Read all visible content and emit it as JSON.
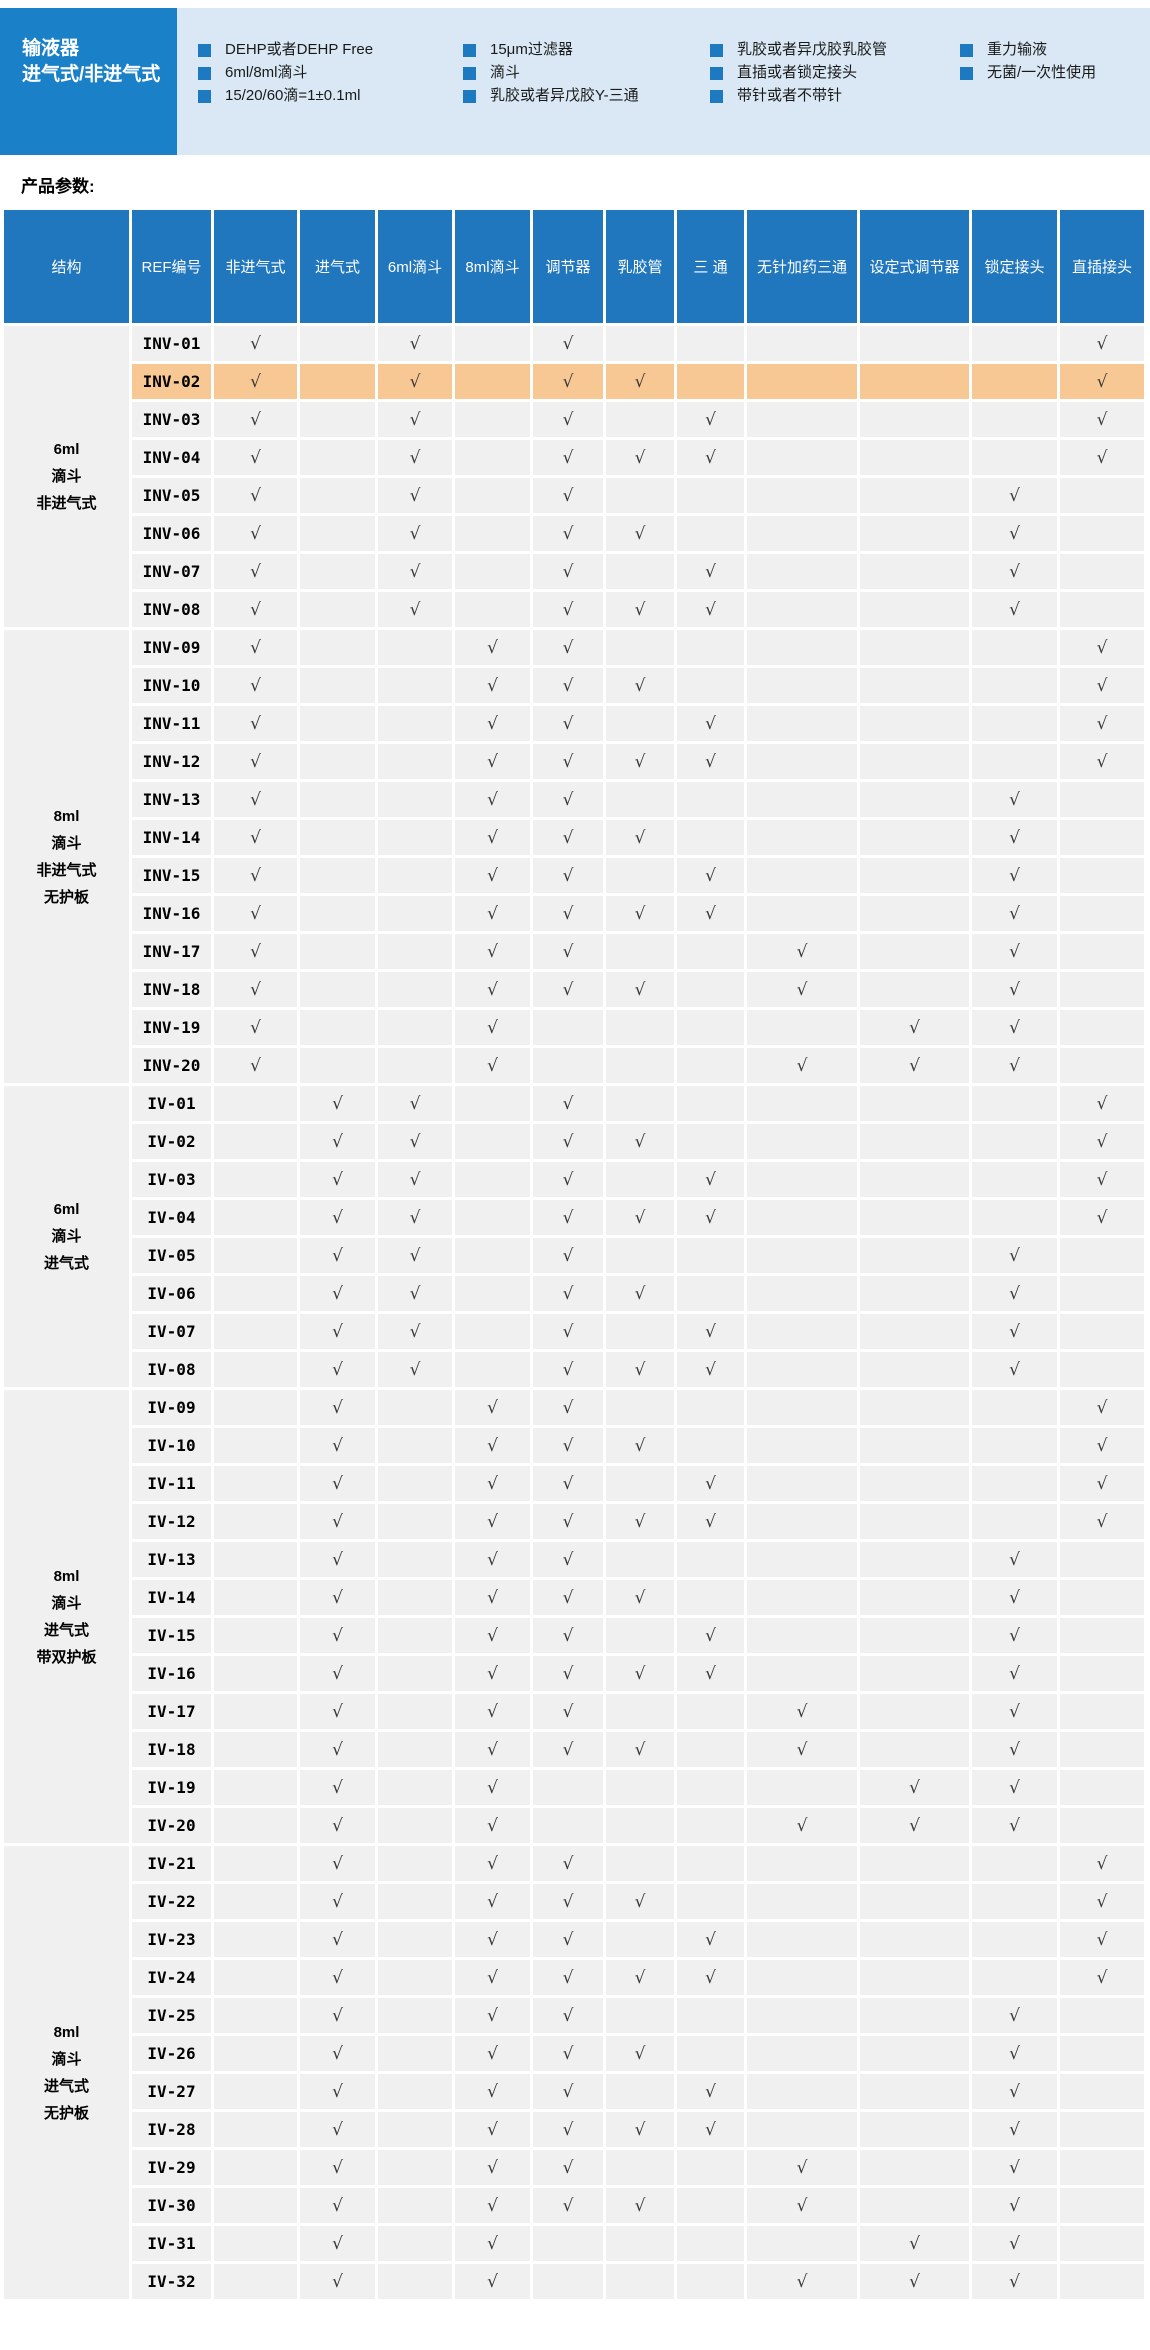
{
  "banner": {
    "title_lines": [
      "输液器",
      "进气式/非进气式"
    ],
    "feature_columns": [
      [
        "DEHP或者DEHP Free",
        "6ml/8ml滴斗",
        "15/20/60滴=1±0.1ml"
      ],
      [
        "15μm过滤器",
        "滴斗",
        "乳胶或者异戊胶Y-三通"
      ],
      [
        "乳胶或者异戊胶乳胶管",
        "直插或者锁定接头",
        "带针或者不带针"
      ],
      [
        "重力输液",
        "无菌/一次性使用"
      ]
    ]
  },
  "section_label": "产品参数:",
  "colors": {
    "banner_blue": "#1a80c8",
    "panel_light_blue": "#d9e8f4",
    "bullet_blue": "#1d7ac1",
    "header_blue": "#2077bd",
    "row_gray": "#f0f0f0",
    "highlight_orange": "#f8c894",
    "check_gray": "#3a3a3a"
  },
  "table": {
    "check_mark": "√",
    "highlight_ref": "INV-02",
    "columns": [
      "结构",
      "REF编号",
      "非进气式",
      "进气式",
      "6ml滴斗",
      "8ml滴斗",
      "调节器",
      "乳胶管",
      "三 通",
      "无针加药三通",
      "设定式调节器",
      "锁定接头",
      "直插接头"
    ],
    "feature_column_keys": [
      "非进气式",
      "进气式",
      "6ml滴斗",
      "8ml滴斗",
      "调节器",
      "乳胶管",
      "三通",
      "无针加药三通",
      "设定式调节器",
      "锁定接头",
      "直插接头"
    ],
    "groups": [
      {
        "structure_lines": [
          "6ml",
          "滴斗",
          "非进气式"
        ],
        "rows": [
          {
            "ref": "INV-01",
            "checks": [
              1,
              0,
              1,
              0,
              1,
              0,
              0,
              0,
              0,
              0,
              1
            ]
          },
          {
            "ref": "INV-02",
            "checks": [
              1,
              0,
              1,
              0,
              1,
              1,
              0,
              0,
              0,
              0,
              1
            ]
          },
          {
            "ref": "INV-03",
            "checks": [
              1,
              0,
              1,
              0,
              1,
              0,
              1,
              0,
              0,
              0,
              1
            ]
          },
          {
            "ref": "INV-04",
            "checks": [
              1,
              0,
              1,
              0,
              1,
              1,
              1,
              0,
              0,
              0,
              1
            ]
          },
          {
            "ref": "INV-05",
            "checks": [
              1,
              0,
              1,
              0,
              1,
              0,
              0,
              0,
              0,
              1,
              0
            ]
          },
          {
            "ref": "INV-06",
            "checks": [
              1,
              0,
              1,
              0,
              1,
              1,
              0,
              0,
              0,
              1,
              0
            ]
          },
          {
            "ref": "INV-07",
            "checks": [
              1,
              0,
              1,
              0,
              1,
              0,
              1,
              0,
              0,
              1,
              0
            ]
          },
          {
            "ref": "INV-08",
            "checks": [
              1,
              0,
              1,
              0,
              1,
              1,
              1,
              0,
              0,
              1,
              0
            ]
          }
        ]
      },
      {
        "structure_lines": [
          "8ml",
          "滴斗",
          "非进气式",
          "无护板"
        ],
        "rows": [
          {
            "ref": "INV-09",
            "checks": [
              1,
              0,
              0,
              1,
              1,
              0,
              0,
              0,
              0,
              0,
              1
            ]
          },
          {
            "ref": "INV-10",
            "checks": [
              1,
              0,
              0,
              1,
              1,
              1,
              0,
              0,
              0,
              0,
              1
            ]
          },
          {
            "ref": "INV-11",
            "checks": [
              1,
              0,
              0,
              1,
              1,
              0,
              1,
              0,
              0,
              0,
              1
            ]
          },
          {
            "ref": "INV-12",
            "checks": [
              1,
              0,
              0,
              1,
              1,
              1,
              1,
              0,
              0,
              0,
              1
            ]
          },
          {
            "ref": "INV-13",
            "checks": [
              1,
              0,
              0,
              1,
              1,
              0,
              0,
              0,
              0,
              1,
              0
            ]
          },
          {
            "ref": "INV-14",
            "checks": [
              1,
              0,
              0,
              1,
              1,
              1,
              0,
              0,
              0,
              1,
              0
            ]
          },
          {
            "ref": "INV-15",
            "checks": [
              1,
              0,
              0,
              1,
              1,
              0,
              1,
              0,
              0,
              1,
              0
            ]
          },
          {
            "ref": "INV-16",
            "checks": [
              1,
              0,
              0,
              1,
              1,
              1,
              1,
              0,
              0,
              1,
              0
            ]
          },
          {
            "ref": "INV-17",
            "checks": [
              1,
              0,
              0,
              1,
              1,
              0,
              0,
              1,
              0,
              1,
              0
            ]
          },
          {
            "ref": "INV-18",
            "checks": [
              1,
              0,
              0,
              1,
              1,
              1,
              0,
              1,
              0,
              1,
              0
            ]
          },
          {
            "ref": "INV-19",
            "checks": [
              1,
              0,
              0,
              1,
              0,
              0,
              0,
              0,
              1,
              1,
              0
            ]
          },
          {
            "ref": "INV-20",
            "checks": [
              1,
              0,
              0,
              1,
              0,
              0,
              0,
              1,
              1,
              1,
              0
            ]
          }
        ]
      },
      {
        "structure_lines": [
          "6ml",
          "滴斗",
          "进气式"
        ],
        "rows": [
          {
            "ref": "IV-01",
            "checks": [
              0,
              1,
              1,
              0,
              1,
              0,
              0,
              0,
              0,
              0,
              1
            ]
          },
          {
            "ref": "IV-02",
            "checks": [
              0,
              1,
              1,
              0,
              1,
              1,
              0,
              0,
              0,
              0,
              1
            ]
          },
          {
            "ref": "IV-03",
            "checks": [
              0,
              1,
              1,
              0,
              1,
              0,
              1,
              0,
              0,
              0,
              1
            ]
          },
          {
            "ref": "IV-04",
            "checks": [
              0,
              1,
              1,
              0,
              1,
              1,
              1,
              0,
              0,
              0,
              1
            ]
          },
          {
            "ref": "IV-05",
            "checks": [
              0,
              1,
              1,
              0,
              1,
              0,
              0,
              0,
              0,
              1,
              0
            ]
          },
          {
            "ref": "IV-06",
            "checks": [
              0,
              1,
              1,
              0,
              1,
              1,
              0,
              0,
              0,
              1,
              0
            ]
          },
          {
            "ref": "IV-07",
            "checks": [
              0,
              1,
              1,
              0,
              1,
              0,
              1,
              0,
              0,
              1,
              0
            ]
          },
          {
            "ref": "IV-08",
            "checks": [
              0,
              1,
              1,
              0,
              1,
              1,
              1,
              0,
              0,
              1,
              0
            ]
          }
        ]
      },
      {
        "structure_lines": [
          "8ml",
          "滴斗",
          "进气式",
          "带双护板"
        ],
        "rows": [
          {
            "ref": "IV-09",
            "checks": [
              0,
              1,
              0,
              1,
              1,
              0,
              0,
              0,
              0,
              0,
              1
            ]
          },
          {
            "ref": "IV-10",
            "checks": [
              0,
              1,
              0,
              1,
              1,
              1,
              0,
              0,
              0,
              0,
              1
            ]
          },
          {
            "ref": "IV-11",
            "checks": [
              0,
              1,
              0,
              1,
              1,
              0,
              1,
              0,
              0,
              0,
              1
            ]
          },
          {
            "ref": "IV-12",
            "checks": [
              0,
              1,
              0,
              1,
              1,
              1,
              1,
              0,
              0,
              0,
              1
            ]
          },
          {
            "ref": "IV-13",
            "checks": [
              0,
              1,
              0,
              1,
              1,
              0,
              0,
              0,
              0,
              1,
              0
            ]
          },
          {
            "ref": "IV-14",
            "checks": [
              0,
              1,
              0,
              1,
              1,
              1,
              0,
              0,
              0,
              1,
              0
            ]
          },
          {
            "ref": "IV-15",
            "checks": [
              0,
              1,
              0,
              1,
              1,
              0,
              1,
              0,
              0,
              1,
              0
            ]
          },
          {
            "ref": "IV-16",
            "checks": [
              0,
              1,
              0,
              1,
              1,
              1,
              1,
              0,
              0,
              1,
              0
            ]
          },
          {
            "ref": "IV-17",
            "checks": [
              0,
              1,
              0,
              1,
              1,
              0,
              0,
              1,
              0,
              1,
              0
            ]
          },
          {
            "ref": "IV-18",
            "checks": [
              0,
              1,
              0,
              1,
              1,
              1,
              0,
              1,
              0,
              1,
              0
            ]
          },
          {
            "ref": "IV-19",
            "checks": [
              0,
              1,
              0,
              1,
              0,
              0,
              0,
              0,
              1,
              1,
              0
            ]
          },
          {
            "ref": "IV-20",
            "checks": [
              0,
              1,
              0,
              1,
              0,
              0,
              0,
              1,
              1,
              1,
              0
            ]
          }
        ]
      },
      {
        "structure_lines": [
          "8ml",
          "滴斗",
          "进气式",
          "无护板"
        ],
        "rows": [
          {
            "ref": "IV-21",
            "checks": [
              0,
              1,
              0,
              1,
              1,
              0,
              0,
              0,
              0,
              0,
              1
            ]
          },
          {
            "ref": "IV-22",
            "checks": [
              0,
              1,
              0,
              1,
              1,
              1,
              0,
              0,
              0,
              0,
              1
            ]
          },
          {
            "ref": "IV-23",
            "checks": [
              0,
              1,
              0,
              1,
              1,
              0,
              1,
              0,
              0,
              0,
              1
            ]
          },
          {
            "ref": "IV-24",
            "checks": [
              0,
              1,
              0,
              1,
              1,
              1,
              1,
              0,
              0,
              0,
              1
            ]
          },
          {
            "ref": "IV-25",
            "checks": [
              0,
              1,
              0,
              1,
              1,
              0,
              0,
              0,
              0,
              1,
              0
            ]
          },
          {
            "ref": "IV-26",
            "checks": [
              0,
              1,
              0,
              1,
              1,
              1,
              0,
              0,
              0,
              1,
              0
            ]
          },
          {
            "ref": "IV-27",
            "checks": [
              0,
              1,
              0,
              1,
              1,
              0,
              1,
              0,
              0,
              1,
              0
            ]
          },
          {
            "ref": "IV-28",
            "checks": [
              0,
              1,
              0,
              1,
              1,
              1,
              1,
              0,
              0,
              1,
              0
            ]
          },
          {
            "ref": "IV-29",
            "checks": [
              0,
              1,
              0,
              1,
              1,
              0,
              0,
              1,
              0,
              1,
              0
            ]
          },
          {
            "ref": "IV-30",
            "checks": [
              0,
              1,
              0,
              1,
              1,
              1,
              0,
              1,
              0,
              1,
              0
            ]
          },
          {
            "ref": "IV-31",
            "checks": [
              0,
              1,
              0,
              1,
              0,
              0,
              0,
              0,
              1,
              1,
              0
            ]
          },
          {
            "ref": "IV-32",
            "checks": [
              0,
              1,
              0,
              1,
              0,
              0,
              0,
              1,
              1,
              1,
              0
            ]
          }
        ]
      }
    ]
  }
}
